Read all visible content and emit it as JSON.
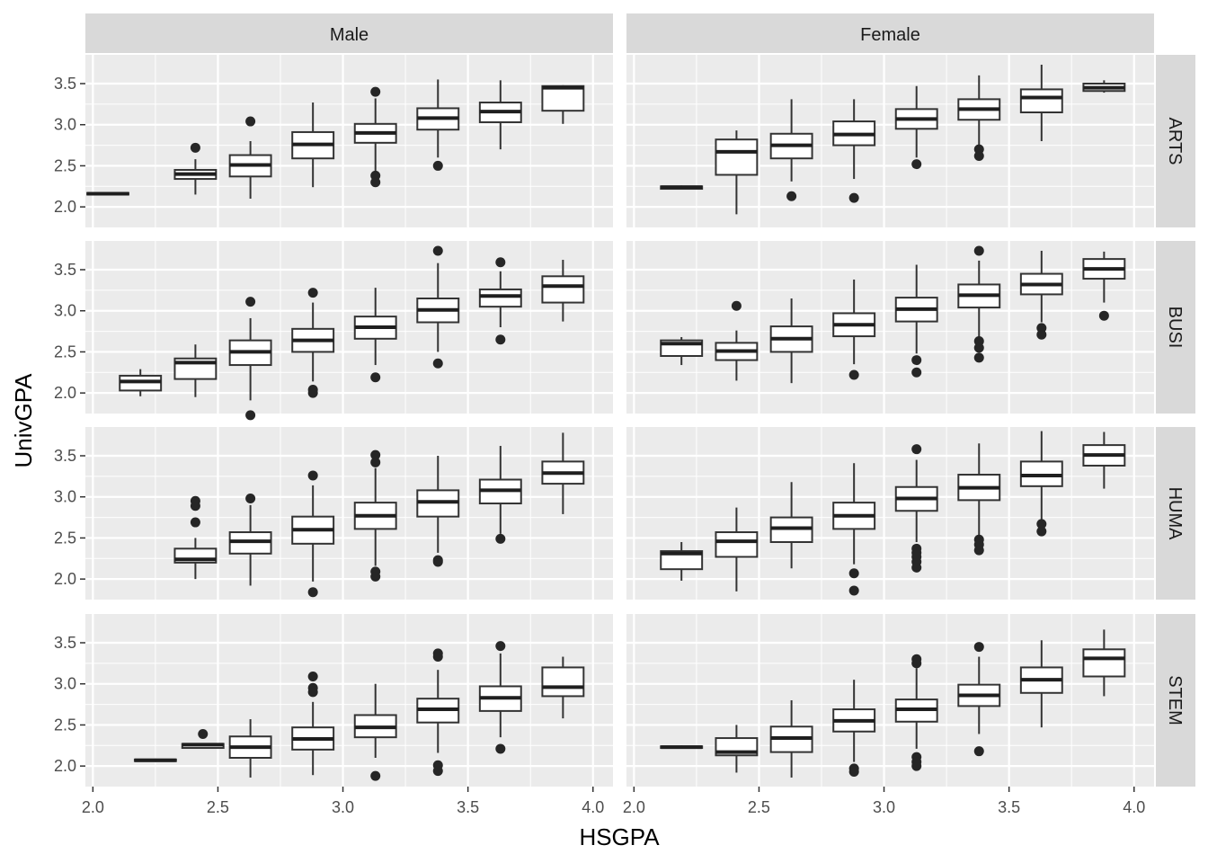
{
  "chart_data": {
    "type": "boxplot",
    "xlabel": "HSGPA",
    "ylabel": "UnivGPA",
    "xlim": [
      1.97,
      4.08
    ],
    "ylim": [
      1.75,
      3.85
    ],
    "x_ticks": [
      2.0,
      2.5,
      3.0,
      3.5,
      4.0
    ],
    "x_tick_labels": [
      "2.0",
      "2.5",
      "3.0",
      "3.5",
      "4.0"
    ],
    "y_ticks": [
      2.0,
      2.5,
      3.0,
      3.5
    ],
    "y_tick_labels": [
      "2.0",
      "2.5",
      "3.0",
      "3.5"
    ],
    "grid": true,
    "column_facets": [
      "Male",
      "Female"
    ],
    "row_facets": [
      "ARTS",
      "BUSI",
      "HUMA",
      "STEM"
    ],
    "panels": {
      "ARTS": {
        "Male": [
          {
            "x": 2.06,
            "q1": 2.15,
            "median": 2.16,
            "q3": 2.17,
            "low": 2.14,
            "high": 2.18,
            "outliers": []
          },
          {
            "x": 2.41,
            "q1": 2.34,
            "median": 2.4,
            "q3": 2.45,
            "low": 2.15,
            "high": 2.58,
            "outliers": [
              2.72
            ]
          },
          {
            "x": 2.63,
            "q1": 2.37,
            "median": 2.51,
            "q3": 2.63,
            "low": 2.1,
            "high": 2.8,
            "outliers": [
              3.04
            ]
          },
          {
            "x": 2.88,
            "q1": 2.59,
            "median": 2.76,
            "q3": 2.91,
            "low": 2.24,
            "high": 3.27,
            "outliers": []
          },
          {
            "x": 3.13,
            "q1": 2.78,
            "median": 2.9,
            "q3": 3.01,
            "low": 2.43,
            "high": 3.32,
            "outliers": [
              3.4,
              2.38,
              2.3
            ]
          },
          {
            "x": 3.38,
            "q1": 2.94,
            "median": 3.08,
            "q3": 3.2,
            "low": 2.6,
            "high": 3.55,
            "outliers": [
              2.5
            ]
          },
          {
            "x": 3.63,
            "q1": 3.03,
            "median": 3.16,
            "q3": 3.27,
            "low": 2.7,
            "high": 3.54,
            "outliers": []
          },
          {
            "x": 3.88,
            "q1": 3.17,
            "median": 3.45,
            "q3": 3.47,
            "low": 3.01,
            "high": 3.48,
            "outliers": []
          }
        ],
        "Female": [
          {
            "x": 2.19,
            "q1": 2.22,
            "median": 2.24,
            "q3": 2.25,
            "low": 2.21,
            "high": 2.26,
            "outliers": []
          },
          {
            "x": 2.41,
            "q1": 2.39,
            "median": 2.67,
            "q3": 2.82,
            "low": 1.91,
            "high": 2.93,
            "outliers": []
          },
          {
            "x": 2.63,
            "q1": 2.59,
            "median": 2.75,
            "q3": 2.89,
            "low": 2.31,
            "high": 3.31,
            "outliers": [
              2.13
            ]
          },
          {
            "x": 2.88,
            "q1": 2.75,
            "median": 2.88,
            "q3": 3.04,
            "low": 2.34,
            "high": 3.31,
            "outliers": [
              2.11
            ]
          },
          {
            "x": 3.13,
            "q1": 2.95,
            "median": 3.07,
            "q3": 3.19,
            "low": 2.6,
            "high": 3.47,
            "outliers": [
              2.52
            ]
          },
          {
            "x": 3.38,
            "q1": 3.06,
            "median": 3.19,
            "q3": 3.31,
            "low": 2.75,
            "high": 3.6,
            "outliers": [
              2.7,
              2.62
            ]
          },
          {
            "x": 3.63,
            "q1": 3.15,
            "median": 3.33,
            "q3": 3.43,
            "low": 2.8,
            "high": 3.73,
            "outliers": []
          },
          {
            "x": 3.88,
            "q1": 3.41,
            "median": 3.45,
            "q3": 3.5,
            "low": 3.39,
            "high": 3.54,
            "outliers": []
          }
        ]
      },
      "BUSI": {
        "Male": [
          {
            "x": 2.19,
            "q1": 2.03,
            "median": 2.14,
            "q3": 2.21,
            "low": 1.96,
            "high": 2.29,
            "outliers": []
          },
          {
            "x": 2.41,
            "q1": 2.17,
            "median": 2.37,
            "q3": 2.42,
            "low": 1.95,
            "high": 2.59,
            "outliers": []
          },
          {
            "x": 2.63,
            "q1": 2.34,
            "median": 2.5,
            "q3": 2.64,
            "low": 1.91,
            "high": 2.91,
            "outliers": [
              3.11,
              1.73
            ]
          },
          {
            "x": 2.88,
            "q1": 2.5,
            "median": 2.64,
            "q3": 2.78,
            "low": 2.14,
            "high": 3.1,
            "outliers": [
              3.22,
              2.04,
              2.0
            ]
          },
          {
            "x": 3.13,
            "q1": 2.66,
            "median": 2.8,
            "q3": 2.93,
            "low": 2.34,
            "high": 3.28,
            "outliers": [
              2.19
            ]
          },
          {
            "x": 3.38,
            "q1": 2.86,
            "median": 3.01,
            "q3": 3.15,
            "low": 2.5,
            "high": 3.58,
            "outliers": [
              3.73,
              2.36
            ]
          },
          {
            "x": 3.63,
            "q1": 3.05,
            "median": 3.18,
            "q3": 3.26,
            "low": 2.8,
            "high": 3.48,
            "outliers": [
              3.59,
              2.65
            ]
          },
          {
            "x": 3.88,
            "q1": 3.1,
            "median": 3.3,
            "q3": 3.42,
            "low": 2.87,
            "high": 3.62,
            "outliers": []
          }
        ],
        "Female": [
          {
            "x": 2.19,
            "q1": 2.45,
            "median": 2.6,
            "q3": 2.64,
            "low": 2.34,
            "high": 2.68,
            "outliers": []
          },
          {
            "x": 2.41,
            "q1": 2.4,
            "median": 2.51,
            "q3": 2.61,
            "low": 2.15,
            "high": 2.76,
            "outliers": [
              3.06
            ]
          },
          {
            "x": 2.63,
            "q1": 2.5,
            "median": 2.66,
            "q3": 2.81,
            "low": 2.12,
            "high": 3.15,
            "outliers": []
          },
          {
            "x": 2.88,
            "q1": 2.69,
            "median": 2.83,
            "q3": 2.97,
            "low": 2.35,
            "high": 3.38,
            "outliers": [
              2.22
            ]
          },
          {
            "x": 3.13,
            "q1": 2.87,
            "median": 3.02,
            "q3": 3.16,
            "low": 2.48,
            "high": 3.56,
            "outliers": [
              2.4,
              2.25
            ]
          },
          {
            "x": 3.38,
            "q1": 3.04,
            "median": 3.19,
            "q3": 3.32,
            "low": 2.67,
            "high": 3.61,
            "outliers": [
              3.73,
              2.63,
              2.55,
              2.43
            ]
          },
          {
            "x": 3.63,
            "q1": 3.2,
            "median": 3.32,
            "q3": 3.45,
            "low": 2.86,
            "high": 3.73,
            "outliers": [
              2.79,
              2.71
            ]
          },
          {
            "x": 3.88,
            "q1": 3.39,
            "median": 3.51,
            "q3": 3.63,
            "low": 3.1,
            "high": 3.72,
            "outliers": [
              2.94
            ]
          }
        ]
      },
      "HUMA": {
        "Male": [
          {
            "x": 2.41,
            "q1": 2.2,
            "median": 2.24,
            "q3": 2.37,
            "low": 2.0,
            "high": 2.5,
            "outliers": [
              2.95,
              2.89,
              2.69
            ]
          },
          {
            "x": 2.63,
            "q1": 2.31,
            "median": 2.46,
            "q3": 2.57,
            "low": 1.92,
            "high": 2.9,
            "outliers": [
              2.98
            ]
          },
          {
            "x": 2.88,
            "q1": 2.43,
            "median": 2.6,
            "q3": 2.76,
            "low": 1.97,
            "high": 3.14,
            "outliers": [
              3.26,
              1.84
            ]
          },
          {
            "x": 3.13,
            "q1": 2.61,
            "median": 2.77,
            "q3": 2.93,
            "low": 2.16,
            "high": 3.35,
            "outliers": [
              3.51,
              3.42,
              2.09,
              2.03
            ]
          },
          {
            "x": 3.38,
            "q1": 2.76,
            "median": 2.94,
            "q3": 3.08,
            "low": 2.32,
            "high": 3.5,
            "outliers": [
              2.23,
              2.21
            ]
          },
          {
            "x": 3.63,
            "q1": 2.92,
            "median": 3.08,
            "q3": 3.21,
            "low": 2.55,
            "high": 3.62,
            "outliers": [
              2.49
            ]
          },
          {
            "x": 3.88,
            "q1": 3.16,
            "median": 3.29,
            "q3": 3.43,
            "low": 2.79,
            "high": 3.78,
            "outliers": []
          }
        ],
        "Female": [
          {
            "x": 2.19,
            "q1": 2.12,
            "median": 2.31,
            "q3": 2.34,
            "low": 1.98,
            "high": 2.45,
            "outliers": []
          },
          {
            "x": 2.41,
            "q1": 2.27,
            "median": 2.46,
            "q3": 2.57,
            "low": 1.85,
            "high": 2.87,
            "outliers": []
          },
          {
            "x": 2.63,
            "q1": 2.45,
            "median": 2.62,
            "q3": 2.75,
            "low": 2.13,
            "high": 3.18,
            "outliers": []
          },
          {
            "x": 2.88,
            "q1": 2.61,
            "median": 2.77,
            "q3": 2.93,
            "low": 2.18,
            "high": 3.41,
            "outliers": [
              2.07,
              1.86
            ]
          },
          {
            "x": 3.13,
            "q1": 2.83,
            "median": 2.98,
            "q3": 3.12,
            "low": 2.45,
            "high": 3.45,
            "outliers": [
              3.58,
              2.37,
              2.32,
              2.27,
              2.21,
              2.14
            ]
          },
          {
            "x": 3.38,
            "q1": 2.96,
            "median": 3.11,
            "q3": 3.27,
            "low": 2.53,
            "high": 3.65,
            "outliers": [
              2.48,
              2.42,
              2.35
            ]
          },
          {
            "x": 3.63,
            "q1": 3.13,
            "median": 3.26,
            "q3": 3.43,
            "low": 2.71,
            "high": 3.8,
            "outliers": [
              2.67,
              2.58
            ]
          },
          {
            "x": 3.88,
            "q1": 3.38,
            "median": 3.51,
            "q3": 3.63,
            "low": 3.1,
            "high": 3.79,
            "outliers": []
          }
        ]
      },
      "STEM": {
        "Male": [
          {
            "x": 2.25,
            "q1": 2.06,
            "median": 2.07,
            "q3": 2.08,
            "low": 2.05,
            "high": 2.09,
            "outliers": []
          },
          {
            "x": 2.44,
            "q1": 2.22,
            "median": 2.26,
            "q3": 2.27,
            "low": 2.21,
            "high": 2.28,
            "outliers": [
              2.39
            ]
          },
          {
            "x": 2.63,
            "q1": 2.1,
            "median": 2.23,
            "q3": 2.36,
            "low": 1.86,
            "high": 2.57,
            "outliers": []
          },
          {
            "x": 2.88,
            "q1": 2.2,
            "median": 2.33,
            "q3": 2.47,
            "low": 1.89,
            "high": 2.78,
            "outliers": [
              3.09,
              2.95,
              2.9
            ]
          },
          {
            "x": 3.13,
            "q1": 2.35,
            "median": 2.47,
            "q3": 2.62,
            "low": 2.1,
            "high": 3.0,
            "outliers": [
              1.88
            ]
          },
          {
            "x": 3.38,
            "q1": 2.53,
            "median": 2.69,
            "q3": 2.82,
            "low": 2.16,
            "high": 3.17,
            "outliers": [
              3.37,
              3.33,
              2.01,
              1.94
            ]
          },
          {
            "x": 3.63,
            "q1": 2.67,
            "median": 2.83,
            "q3": 2.97,
            "low": 2.35,
            "high": 3.37,
            "outliers": [
              3.46,
              2.21
            ]
          },
          {
            "x": 3.88,
            "q1": 2.85,
            "median": 2.96,
            "q3": 3.2,
            "low": 2.58,
            "high": 3.33,
            "outliers": []
          }
        ],
        "Female": [
          {
            "x": 2.19,
            "q1": 2.22,
            "median": 2.23,
            "q3": 2.24,
            "low": 2.21,
            "high": 2.25,
            "outliers": []
          },
          {
            "x": 2.41,
            "q1": 2.13,
            "median": 2.17,
            "q3": 2.34,
            "low": 1.92,
            "high": 2.5,
            "outliers": []
          },
          {
            "x": 2.63,
            "q1": 2.17,
            "median": 2.34,
            "q3": 2.48,
            "low": 1.86,
            "high": 2.8,
            "outliers": []
          },
          {
            "x": 2.88,
            "q1": 2.42,
            "median": 2.55,
            "q3": 2.69,
            "low": 2.05,
            "high": 3.05,
            "outliers": [
              1.97,
              1.93
            ]
          },
          {
            "x": 3.13,
            "q1": 2.54,
            "median": 2.69,
            "q3": 2.81,
            "low": 2.21,
            "high": 3.19,
            "outliers": [
              3.3,
              3.25,
              2.11,
              2.05,
              2.0
            ]
          },
          {
            "x": 3.38,
            "q1": 2.73,
            "median": 2.86,
            "q3": 2.99,
            "low": 2.39,
            "high": 3.33,
            "outliers": [
              3.45,
              2.18
            ]
          },
          {
            "x": 3.63,
            "q1": 2.89,
            "median": 3.05,
            "q3": 3.2,
            "low": 2.47,
            "high": 3.53,
            "outliers": []
          },
          {
            "x": 3.88,
            "q1": 3.09,
            "median": 3.31,
            "q3": 3.42,
            "low": 2.85,
            "high": 3.66,
            "outliers": []
          }
        ]
      }
    }
  }
}
